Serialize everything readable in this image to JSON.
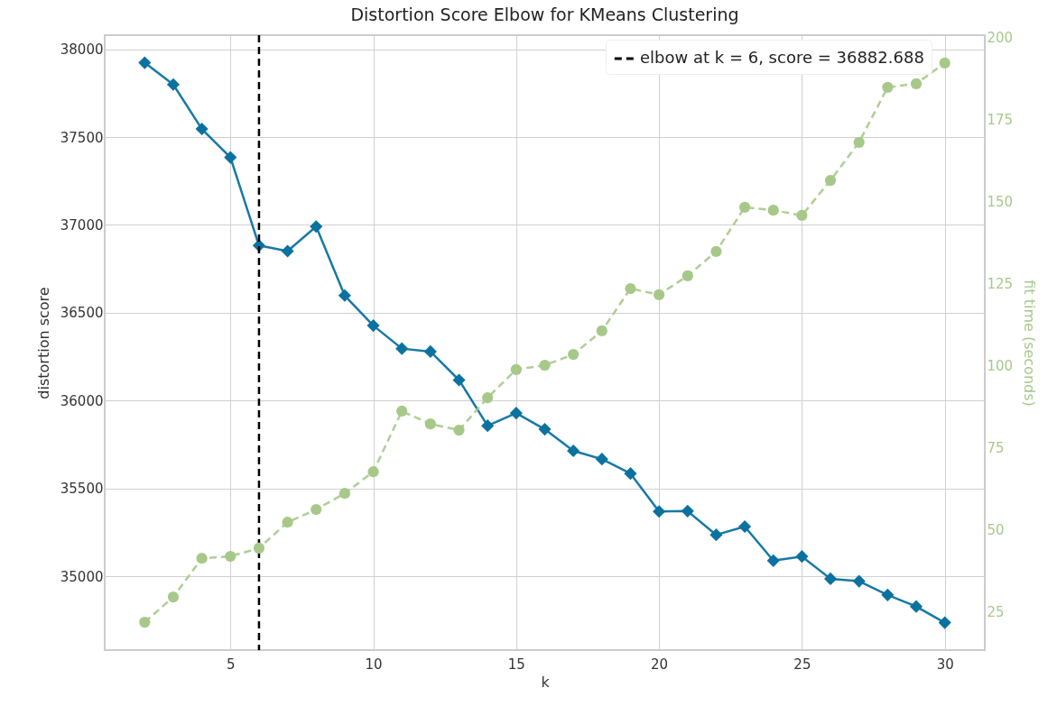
{
  "chart_data": {
    "type": "line",
    "title": "Distortion Score Elbow for KMeans Clustering",
    "xlabel": "k",
    "ylabel": "distortion score",
    "y2label": "fit time (seconds)",
    "x": [
      2,
      3,
      4,
      5,
      6,
      7,
      8,
      9,
      10,
      11,
      12,
      13,
      14,
      15,
      16,
      17,
      18,
      19,
      20,
      21,
      22,
      23,
      24,
      25,
      26,
      27,
      28,
      29,
      30
    ],
    "series": [
      {
        "color": "#0b72a0",
        "marker": "diamond",
        "line_style": "solid",
        "values": [
          37923,
          37799,
          37546,
          37384,
          36882.688,
          36851,
          36991,
          36598,
          36427,
          36296,
          36279,
          36117,
          35857,
          35929,
          35837,
          35714,
          35667,
          35585,
          35369,
          35371,
          35236,
          35283,
          35089,
          35113,
          34986,
          34972,
          34894,
          34828,
          34736
        ]
      },
      {
        "color": "#a6c98a",
        "marker": "circle",
        "line_style": "dashed",
        "axis": "y2",
        "values": [
          21.7,
          29.4,
          41.2,
          41.8,
          44.3,
          52.2,
          56.1,
          61.0,
          67.6,
          86.1,
          82.2,
          80.3,
          90.2,
          98.8,
          100.1,
          103.4,
          110.6,
          123.5,
          121.6,
          127.4,
          134.8,
          148.3,
          147.4,
          145.8,
          156.5,
          168.1,
          184.9,
          186.0,
          192.3
        ]
      }
    ],
    "xlim": [
      0.6,
      31.4
    ],
    "xticks": [
      5,
      10,
      15,
      20,
      25,
      30
    ],
    "ylim": [
      34580,
      38080
    ],
    "yticks": [
      35000,
      35500,
      36000,
      36500,
      37000,
      37500,
      38000
    ],
    "y2lim": [
      13.2,
      200.8
    ],
    "y2ticks": [
      25,
      50,
      75,
      100,
      125,
      150,
      175,
      200
    ],
    "ref_lines": [
      {
        "axis": "x",
        "value": 6,
        "label": "elbow at k = 6, score = 36882.688",
        "color": "#000000",
        "line_style": "dashed"
      }
    ],
    "grid": true,
    "legend": "top right"
  }
}
